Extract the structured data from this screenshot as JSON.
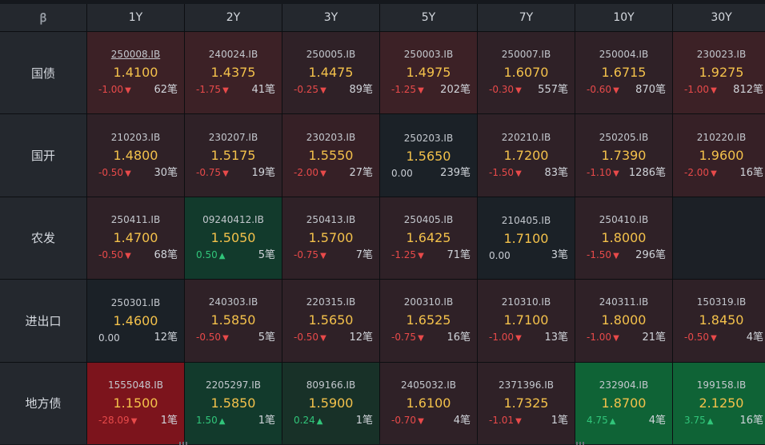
{
  "corner_icon": "b-logo-icon",
  "corner_glyph": "ꞵ",
  "tenors": [
    "1Y",
    "2Y",
    "3Y",
    "5Y",
    "7Y",
    "10Y",
    "30Y"
  ],
  "rows": [
    {
      "label": "国债",
      "cells": [
        {
          "code": "250008.IB",
          "yield": "1.4100",
          "change": "-1.00",
          "dir": "down",
          "count": "62笔",
          "tone": "red1",
          "underline": true
        },
        {
          "code": "240024.IB",
          "yield": "1.4375",
          "change": "-1.75",
          "dir": "down",
          "count": "41笔",
          "tone": "red1"
        },
        {
          "code": "250005.IB",
          "yield": "1.4475",
          "change": "-0.25",
          "dir": "down",
          "count": "89笔",
          "tone": "red2"
        },
        {
          "code": "250003.IB",
          "yield": "1.4975",
          "change": "-1.25",
          "dir": "down",
          "count": "202笔",
          "tone": "red1"
        },
        {
          "code": "250007.IB",
          "yield": "1.6070",
          "change": "-0.30",
          "dir": "down",
          "count": "557笔",
          "tone": "red2"
        },
        {
          "code": "250004.IB",
          "yield": "1.6715",
          "change": "-0.60",
          "dir": "down",
          "count": "870笔",
          "tone": "red2"
        },
        {
          "code": "230023.IB",
          "yield": "1.9275",
          "change": "-1.00",
          "dir": "down",
          "count": "812笔",
          "tone": "red1"
        }
      ]
    },
    {
      "label": "国开",
      "cells": [
        {
          "code": "210203.IB",
          "yield": "1.4800",
          "change": "-0.50",
          "dir": "down",
          "count": "30笔",
          "tone": "red2"
        },
        {
          "code": "230207.IB",
          "yield": "1.5175",
          "change": "-0.75",
          "dir": "down",
          "count": "19笔",
          "tone": "red2"
        },
        {
          "code": "230203.IB",
          "yield": "1.5550",
          "change": "-2.00",
          "dir": "down",
          "count": "27笔",
          "tone": "red3"
        },
        {
          "code": "250203.IB",
          "yield": "1.5650",
          "change": "0.00",
          "dir": "none",
          "count": "239笔",
          "tone": "neu"
        },
        {
          "code": "220210.IB",
          "yield": "1.7200",
          "change": "-1.50",
          "dir": "down",
          "count": "83笔",
          "tone": "red2"
        },
        {
          "code": "250205.IB",
          "yield": "1.7390",
          "change": "-1.10",
          "dir": "down",
          "count": "1286笔",
          "tone": "red2"
        },
        {
          "code": "210220.IB",
          "yield": "1.9600",
          "change": "-2.00",
          "dir": "down",
          "count": "16笔",
          "tone": "red3"
        }
      ]
    },
    {
      "label": "农发",
      "cells": [
        {
          "code": "250411.IB",
          "yield": "1.4700",
          "change": "-0.50",
          "dir": "down",
          "count": "68笔",
          "tone": "red2"
        },
        {
          "code": "09240412.IB",
          "yield": "1.5050",
          "change": "0.50",
          "dir": "up",
          "count": "5笔",
          "tone": "grn1"
        },
        {
          "code": "250413.IB",
          "yield": "1.5700",
          "change": "-0.75",
          "dir": "down",
          "count": "7笔",
          "tone": "red2"
        },
        {
          "code": "250405.IB",
          "yield": "1.6425",
          "change": "-1.25",
          "dir": "down",
          "count": "71笔",
          "tone": "red2"
        },
        {
          "code": "210405.IB",
          "yield": "1.7100",
          "change": "0.00",
          "dir": "none",
          "count": "3笔",
          "tone": "neu"
        },
        {
          "code": "250410.IB",
          "yield": "1.8000",
          "change": "-1.50",
          "dir": "down",
          "count": "296笔",
          "tone": "red2"
        },
        null
      ]
    },
    {
      "label": "进出口",
      "cells": [
        {
          "code": "250301.IB",
          "yield": "1.4600",
          "change": "0.00",
          "dir": "none",
          "count": "12笔",
          "tone": "neu"
        },
        {
          "code": "240303.IB",
          "yield": "1.5850",
          "change": "-0.50",
          "dir": "down",
          "count": "5笔",
          "tone": "red2"
        },
        {
          "code": "220315.IB",
          "yield": "1.5650",
          "change": "-0.50",
          "dir": "down",
          "count": "12笔",
          "tone": "red2"
        },
        {
          "code": "200310.IB",
          "yield": "1.6525",
          "change": "-0.75",
          "dir": "down",
          "count": "16笔",
          "tone": "red2"
        },
        {
          "code": "210310.IB",
          "yield": "1.7100",
          "change": "-1.00",
          "dir": "down",
          "count": "13笔",
          "tone": "red2"
        },
        {
          "code": "240311.IB",
          "yield": "1.8000",
          "change": "-1.00",
          "dir": "down",
          "count": "21笔",
          "tone": "red2"
        },
        {
          "code": "150319.IB",
          "yield": "1.8450",
          "change": "-0.50",
          "dir": "down",
          "count": "4笔",
          "tone": "red2"
        }
      ]
    },
    {
      "label": "地方债",
      "cells": [
        {
          "code": "1555048.IB",
          "yield": "1.1500",
          "change": "-28.09",
          "dir": "down",
          "count": "1笔",
          "tone": "redS"
        },
        {
          "code": "2205297.IB",
          "yield": "1.5850",
          "change": "1.50",
          "dir": "up",
          "count": "1笔",
          "tone": "grn1"
        },
        {
          "code": "809166.IB",
          "yield": "1.5900",
          "change": "0.24",
          "dir": "up",
          "count": "1笔",
          "tone": "grn2"
        },
        {
          "code": "2405032.IB",
          "yield": "1.6100",
          "change": "-0.70",
          "dir": "down",
          "count": "4笔",
          "tone": "red2"
        },
        {
          "code": "2371396.IB",
          "yield": "1.7325",
          "change": "-1.01",
          "dir": "down",
          "count": "1笔",
          "tone": "red2"
        },
        {
          "code": "232904.IB",
          "yield": "1.8700",
          "change": "4.75",
          "dir": "up",
          "count": "4笔",
          "tone": "grnS"
        },
        {
          "code": "199158.IB",
          "yield": "2.1250",
          "change": "3.75",
          "dir": "up",
          "count": "16笔",
          "tone": "grnS"
        }
      ]
    }
  ],
  "colors": {
    "down": "#e84a4a",
    "up": "#31c57a",
    "yield": "#f3c14b"
  }
}
